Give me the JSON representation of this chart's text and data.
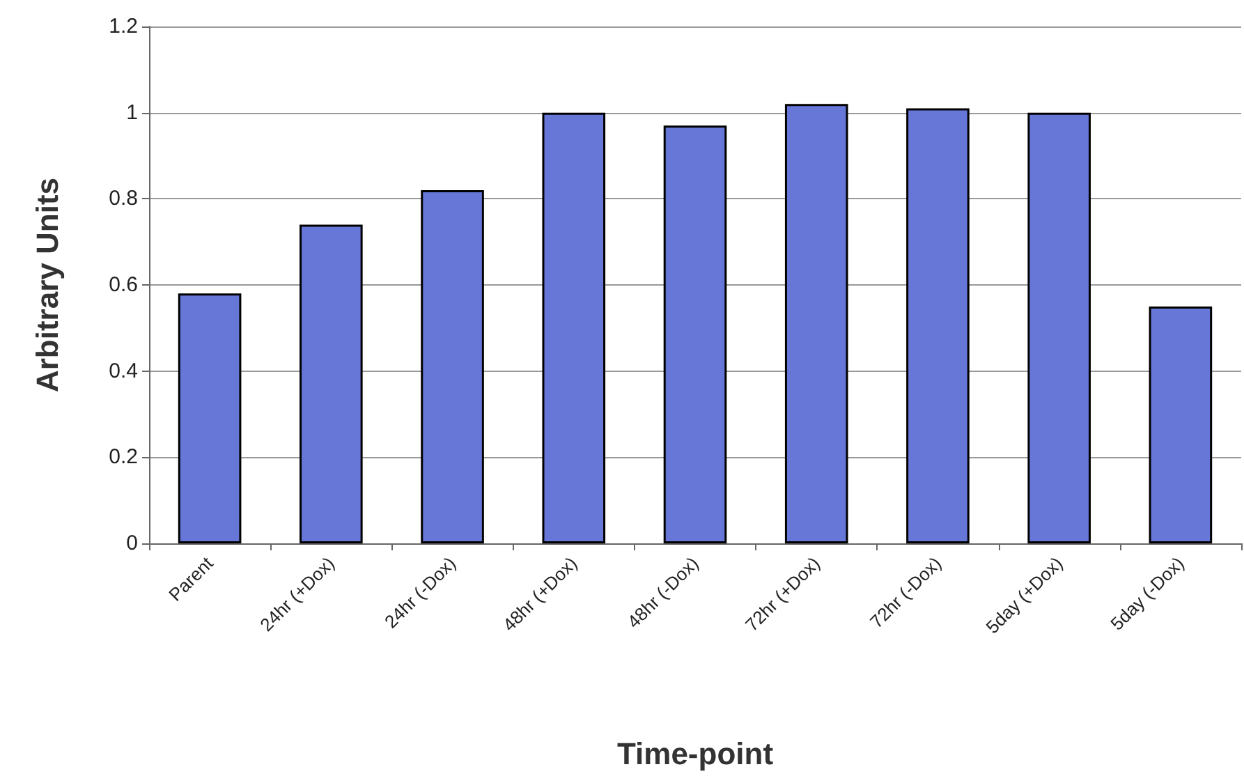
{
  "chart_data": {
    "type": "bar",
    "xlabel": "Time-point",
    "ylabel": "Arbitrary Units",
    "categories": [
      "Parent",
      "24hr (+Dox)",
      "24hr (-Dox)",
      "48hr (+Dox)",
      "48hr (-Dox)",
      "72hr (+Dox)",
      "72hr (-Dox)",
      "5day (+Dox)",
      "5day (-Dox)"
    ],
    "values": [
      0.58,
      0.74,
      0.82,
      1.0,
      0.97,
      1.02,
      1.01,
      1.0,
      0.55
    ],
    "color": "#6677d8",
    "ylim": [
      0,
      1.2
    ],
    "yticks": [
      0,
      0.2,
      0.4,
      0.6,
      0.8,
      1,
      1.2
    ],
    "grid": "y"
  }
}
